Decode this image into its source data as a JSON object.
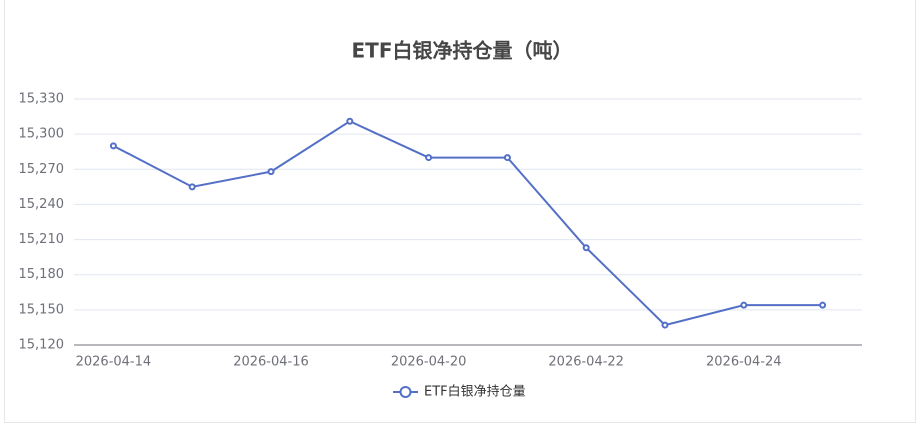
{
  "chart_data": {
    "type": "line",
    "title": "ETF白银净持仓量（吨）",
    "categories": [
      "2026-04-14",
      null,
      "2026-04-16",
      null,
      "2026-04-20",
      null,
      "2026-04-22",
      null,
      "2026-04-24",
      null
    ],
    "series": [
      {
        "name": "ETF白银净持仓量",
        "color": "#5470c6",
        "values": [
          15290,
          15255,
          15268,
          15311,
          15280,
          15280,
          15203,
          15137,
          15154,
          15154
        ]
      }
    ],
    "ylim": [
      15120,
      15330
    ],
    "yticks": [
      {
        "value": 15120,
        "label": "15,120"
      },
      {
        "value": 15150,
        "label": "15,150"
      },
      {
        "value": 15180,
        "label": "15,180"
      },
      {
        "value": 15210,
        "label": "15,210"
      },
      {
        "value": 15240,
        "label": "15,240"
      },
      {
        "value": 15270,
        "label": "15,270"
      },
      {
        "value": 15300,
        "label": "15,300"
      },
      {
        "value": 15330,
        "label": "15,330"
      }
    ],
    "grid": true
  }
}
